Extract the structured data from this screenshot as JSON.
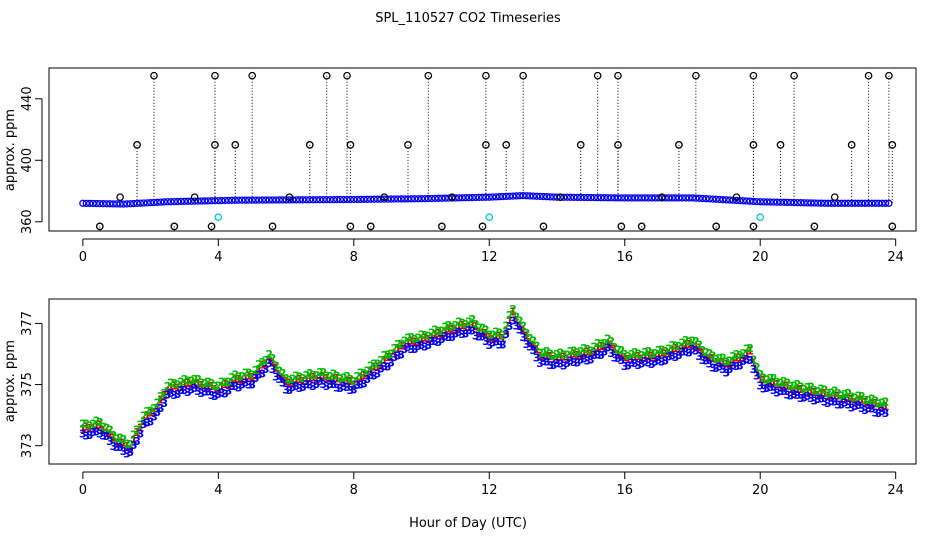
{
  "title": "SPL_110527  CO2 Timeseries",
  "colors": {
    "black": "#000000",
    "blue": "#0000ee",
    "cyan": "#00cccc",
    "red": "#dd0000",
    "green": "#00bb00"
  },
  "chart_data": [
    {
      "type": "scatter",
      "name": "top-panel",
      "ylabel": "approx. ppm",
      "xlim": [
        -1,
        24.6
      ],
      "ylim": [
        354,
        460
      ],
      "xticks": [
        "0",
        "4",
        "8",
        "12",
        "16",
        "20",
        "24"
      ],
      "yticks": [
        "360",
        "400",
        "440"
      ],
      "ytick_values": [
        360,
        400,
        440
      ],
      "xtick_values": [
        0,
        4,
        8,
        12,
        16,
        20,
        24
      ],
      "series": [
        {
          "name": "baseline",
          "color": "blue",
          "start_hour": 0.0,
          "end_hour": 23.8,
          "step_hour": 0.1,
          "anchors": [
            [
              0,
              372
            ],
            [
              1.2,
              371.5
            ],
            [
              2.5,
              373
            ],
            [
              4.5,
              374
            ],
            [
              8,
              374.5
            ],
            [
              10,
              375
            ],
            [
              12,
              376
            ],
            [
              13,
              377
            ],
            [
              14,
              376
            ],
            [
              16,
              375.5
            ],
            [
              18,
              375.5
            ],
            [
              20,
              373
            ],
            [
              22,
              372
            ],
            [
              23.8,
              372
            ]
          ]
        },
        {
          "name": "outliers-high",
          "color": "black",
          "value": 455,
          "x": [
            2.1,
            3.9,
            5.0,
            7.2,
            7.8,
            10.2,
            11.9,
            13.0,
            15.2,
            15.8,
            18.1,
            19.8,
            21.0,
            23.2,
            23.8
          ]
        },
        {
          "name": "outliers-mid",
          "color": "black",
          "value": 410,
          "x": [
            1.6,
            3.9,
            4.5,
            6.7,
            7.9,
            9.6,
            11.9,
            12.5,
            14.7,
            15.8,
            17.6,
            19.8,
            20.6,
            22.7,
            23.9
          ]
        },
        {
          "name": "outliers-low",
          "color": "black",
          "value": 357,
          "x": [
            0.5,
            2.7,
            3.8,
            5.6,
            7.9,
            8.5,
            10.6,
            11.8,
            13.6,
            15.9,
            16.5,
            18.7,
            19.8,
            21.6,
            23.9
          ]
        },
        {
          "name": "points-mid-low",
          "color": "black",
          "value": 376,
          "x": [
            1.1,
            3.3,
            6.1,
            8.9,
            10.9,
            14.1,
            17.1,
            19.3,
            22.2
          ]
        },
        {
          "name": "cyan-points",
          "color": "cyan",
          "value": 363,
          "x": [
            4.0,
            12.0,
            20.0
          ]
        }
      ]
    },
    {
      "type": "scatter",
      "name": "bottom-panel",
      "xlabel": "Hour of Day (UTC)",
      "ylabel": "approx. ppm",
      "xlim": [
        -1,
        24.6
      ],
      "ylim": [
        372.4,
        377.8
      ],
      "xticks": [
        "0",
        "4",
        "8",
        "12",
        "16",
        "20",
        "24"
      ],
      "yticks": [
        "373",
        "375",
        "377"
      ],
      "ytick_values": [
        373,
        375,
        377
      ],
      "xtick_values": [
        0,
        4,
        8,
        12,
        16,
        20,
        24
      ],
      "series": [
        {
          "name": "1",
          "label": "1",
          "color": "red",
          "offset": 0.05
        },
        {
          "name": "2",
          "label": "2",
          "color": "green",
          "offset": 0.18
        },
        {
          "name": "3",
          "label": "3",
          "color": "blue",
          "offset": -0.15
        }
      ],
      "start_hour": 0.0,
      "end_hour": 23.7,
      "step_hour": 0.1,
      "anchors": [
        [
          0,
          373.5
        ],
        [
          0.5,
          373.6
        ],
        [
          1.0,
          373.1
        ],
        [
          1.4,
          372.9
        ],
        [
          1.8,
          373.8
        ],
        [
          2.2,
          374.2
        ],
        [
          2.5,
          374.8
        ],
        [
          3.2,
          375.0
        ],
        [
          4.0,
          374.8
        ],
        [
          4.5,
          375.1
        ],
        [
          5.0,
          375.2
        ],
        [
          5.5,
          375.8
        ],
        [
          6.0,
          375.0
        ],
        [
          7.0,
          375.2
        ],
        [
          8.0,
          375.0
        ],
        [
          8.5,
          375.4
        ],
        [
          9.0,
          375.8
        ],
        [
          9.5,
          376.3
        ],
        [
          10.0,
          376.4
        ],
        [
          10.5,
          376.6
        ],
        [
          11.0,
          376.8
        ],
        [
          11.5,
          376.9
        ],
        [
          12.0,
          376.5
        ],
        [
          12.4,
          376.5
        ],
        [
          12.7,
          377.3
        ],
        [
          13.0,
          376.7
        ],
        [
          13.5,
          375.9
        ],
        [
          14.0,
          375.8
        ],
        [
          15.0,
          376.0
        ],
        [
          15.5,
          376.3
        ],
        [
          16.0,
          375.8
        ],
        [
          17.0,
          375.9
        ],
        [
          18.0,
          376.3
        ],
        [
          18.5,
          375.8
        ],
        [
          19.0,
          375.6
        ],
        [
          19.7,
          376.0
        ],
        [
          20.0,
          375.1
        ],
        [
          21.0,
          374.8
        ],
        [
          22.0,
          374.6
        ],
        [
          23.0,
          374.4
        ],
        [
          23.7,
          374.2
        ]
      ]
    }
  ]
}
